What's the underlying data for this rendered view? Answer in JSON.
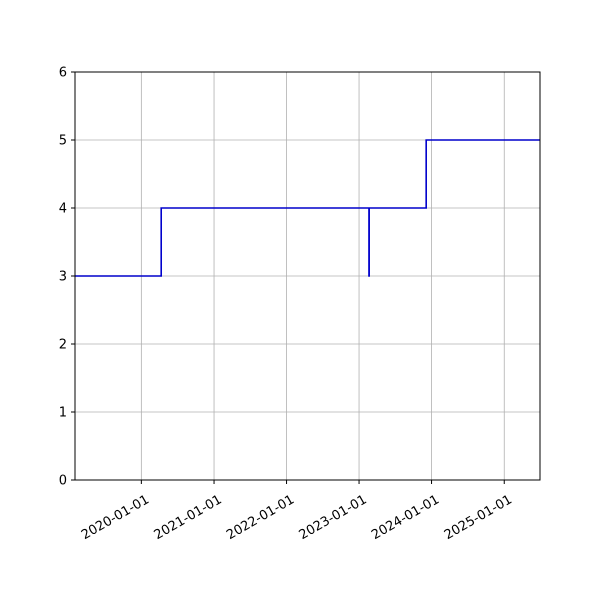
{
  "chart_data": {
    "type": "line",
    "step": "post",
    "title": "",
    "xlabel": "",
    "ylabel": "",
    "x_axis_type": "date",
    "xlim": [
      "2019-02-01",
      "2025-06-30"
    ],
    "ylim": [
      0,
      6
    ],
    "grid": true,
    "legend": "none",
    "x_ticks": [
      "2020-01-01",
      "2021-01-01",
      "2022-01-01",
      "2023-01-01",
      "2024-01-01",
      "2025-01-01"
    ],
    "y_ticks": [
      0,
      1,
      2,
      3,
      4,
      5,
      6
    ],
    "series": [
      {
        "color": "#0000cc",
        "points": [
          {
            "x": "2019-02-01",
            "y": 3
          },
          {
            "x": "2020-04-10",
            "y": 4
          },
          {
            "x": "2023-02-20",
            "y": 3
          },
          {
            "x": "2023-02-21",
            "y": 4
          },
          {
            "x": "2023-12-05",
            "y": 5
          },
          {
            "x": "2025-06-30",
            "y": 5
          }
        ]
      }
    ]
  }
}
